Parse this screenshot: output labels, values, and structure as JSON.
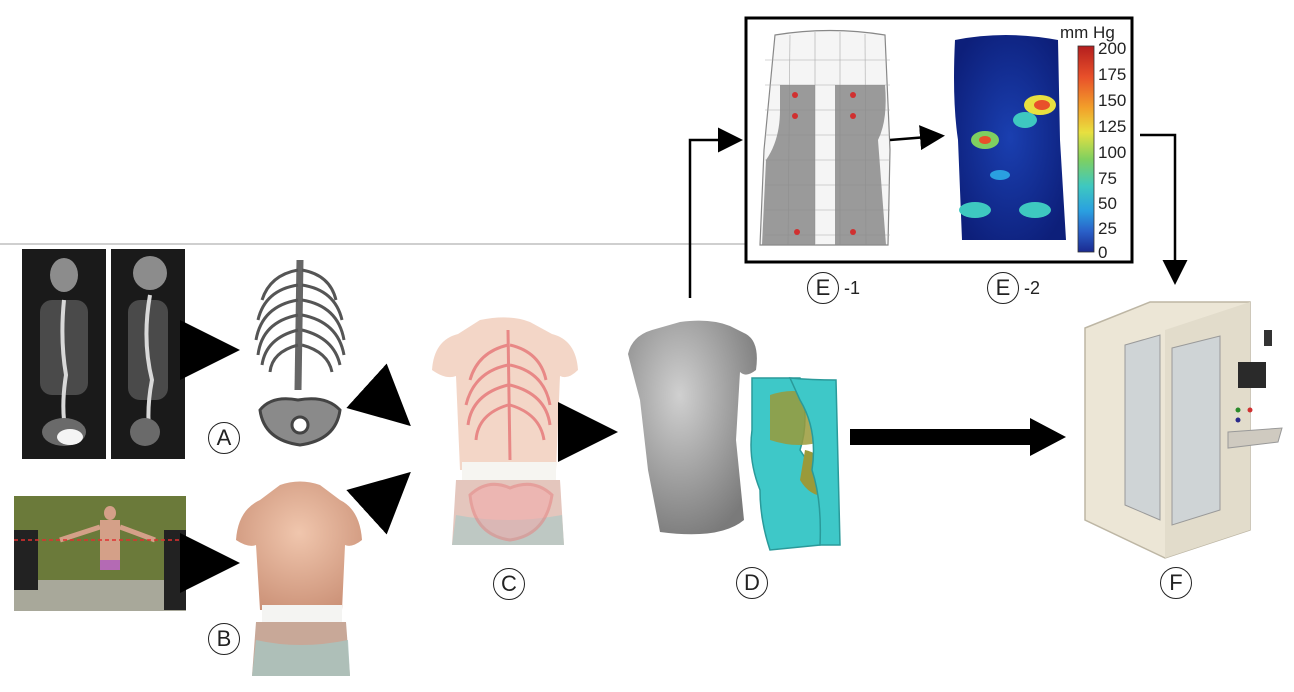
{
  "panels": {
    "A": {
      "label": "A"
    },
    "B": {
      "label": "B"
    },
    "C": {
      "label": "C"
    },
    "D": {
      "label": "D"
    },
    "E1": {
      "label": "E",
      "suffix": "-1"
    },
    "E2": {
      "label": "E",
      "suffix": "-2"
    },
    "F": {
      "label": "F"
    }
  },
  "colorbar": {
    "unit": "mm Hg",
    "ticks": [
      "200",
      "175",
      "150",
      "125",
      "100",
      "75",
      "50",
      "25",
      "0"
    ],
    "colors": [
      "#b41e1e",
      "#e8502a",
      "#f2a02a",
      "#e8e040",
      "#7fd060",
      "#3ec8c0",
      "#2aa0e0",
      "#2a60c8",
      "#1a2a90"
    ]
  },
  "colors": {
    "torso_gray": "#9a9a9a",
    "brace_cyan": "#3ec8c8",
    "brace_olive": "#9a9a3a",
    "skin": "#e6b49a",
    "spine_red": "#e57373",
    "machine": "#ece6d6"
  }
}
